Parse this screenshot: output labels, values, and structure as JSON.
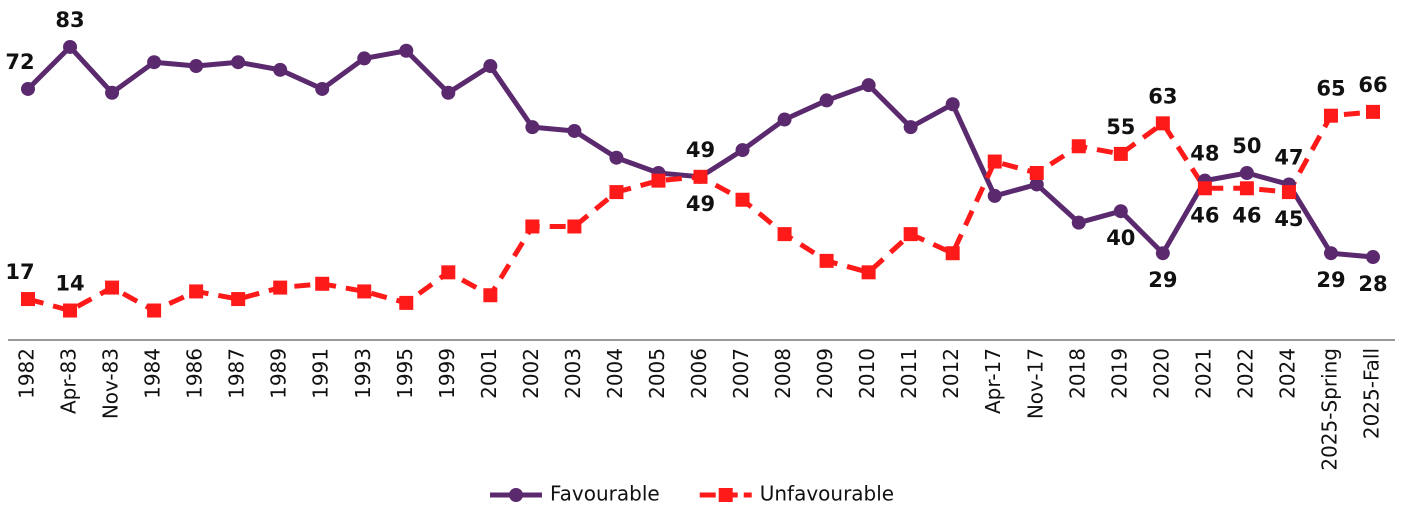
{
  "chart_data": {
    "type": "line",
    "categories": [
      "1982",
      "Apr-83",
      "Nov-83",
      "1984",
      "1986",
      "1987",
      "1989",
      "1991",
      "1993",
      "1995",
      "1999",
      "2001",
      "2002",
      "2003",
      "2004",
      "2005",
      "2006",
      "2007",
      "2008",
      "2009",
      "2010",
      "2011",
      "2012",
      "Apr-17",
      "Nov-17",
      "2018",
      "2019",
      "2020",
      "2021",
      "2022",
      "2024",
      "2025-Spring",
      "2025-Fall"
    ],
    "series": [
      {
        "name": "Favourable",
        "color": "#5b2a6e",
        "marker": "circle",
        "dash": false,
        "values": [
          72,
          83,
          71,
          79,
          78,
          79,
          77,
          72,
          80,
          82,
          71,
          78,
          62,
          61,
          54,
          50,
          49,
          56,
          64,
          69,
          73,
          62,
          68,
          44,
          47,
          37,
          40,
          29,
          48,
          50,
          47,
          29,
          28
        ],
        "labels": [
          {
            "index": 0,
            "position": "above"
          },
          {
            "index": 1,
            "position": "above"
          },
          {
            "index": 16,
            "position": "above"
          },
          {
            "index": 26,
            "position": "below"
          },
          {
            "index": 27,
            "position": "below"
          },
          {
            "index": 28,
            "position": "above"
          },
          {
            "index": 29,
            "position": "above"
          },
          {
            "index": 30,
            "position": "above"
          },
          {
            "index": 31,
            "position": "below"
          },
          {
            "index": 32,
            "position": "below"
          }
        ]
      },
      {
        "name": "Unfavourable",
        "color": "#ff1a1a",
        "marker": "square",
        "dash": true,
        "values": [
          17,
          14,
          20,
          14,
          19,
          17,
          20,
          21,
          19,
          16,
          24,
          18,
          36,
          36,
          45,
          48,
          49,
          43,
          34,
          27,
          24,
          34,
          29,
          53,
          50,
          57,
          55,
          63,
          46,
          46,
          45,
          65,
          66
        ],
        "labels": [
          {
            "index": 0,
            "position": "above"
          },
          {
            "index": 1,
            "position": "above"
          },
          {
            "index": 16,
            "position": "below"
          },
          {
            "index": 26,
            "position": "above"
          },
          {
            "index": 27,
            "position": "above"
          },
          {
            "index": 28,
            "position": "below"
          },
          {
            "index": 29,
            "position": "below"
          },
          {
            "index": 30,
            "position": "below"
          },
          {
            "index": 31,
            "position": "above"
          },
          {
            "index": 32,
            "position": "above"
          }
        ]
      }
    ],
    "legend": "bottom"
  }
}
